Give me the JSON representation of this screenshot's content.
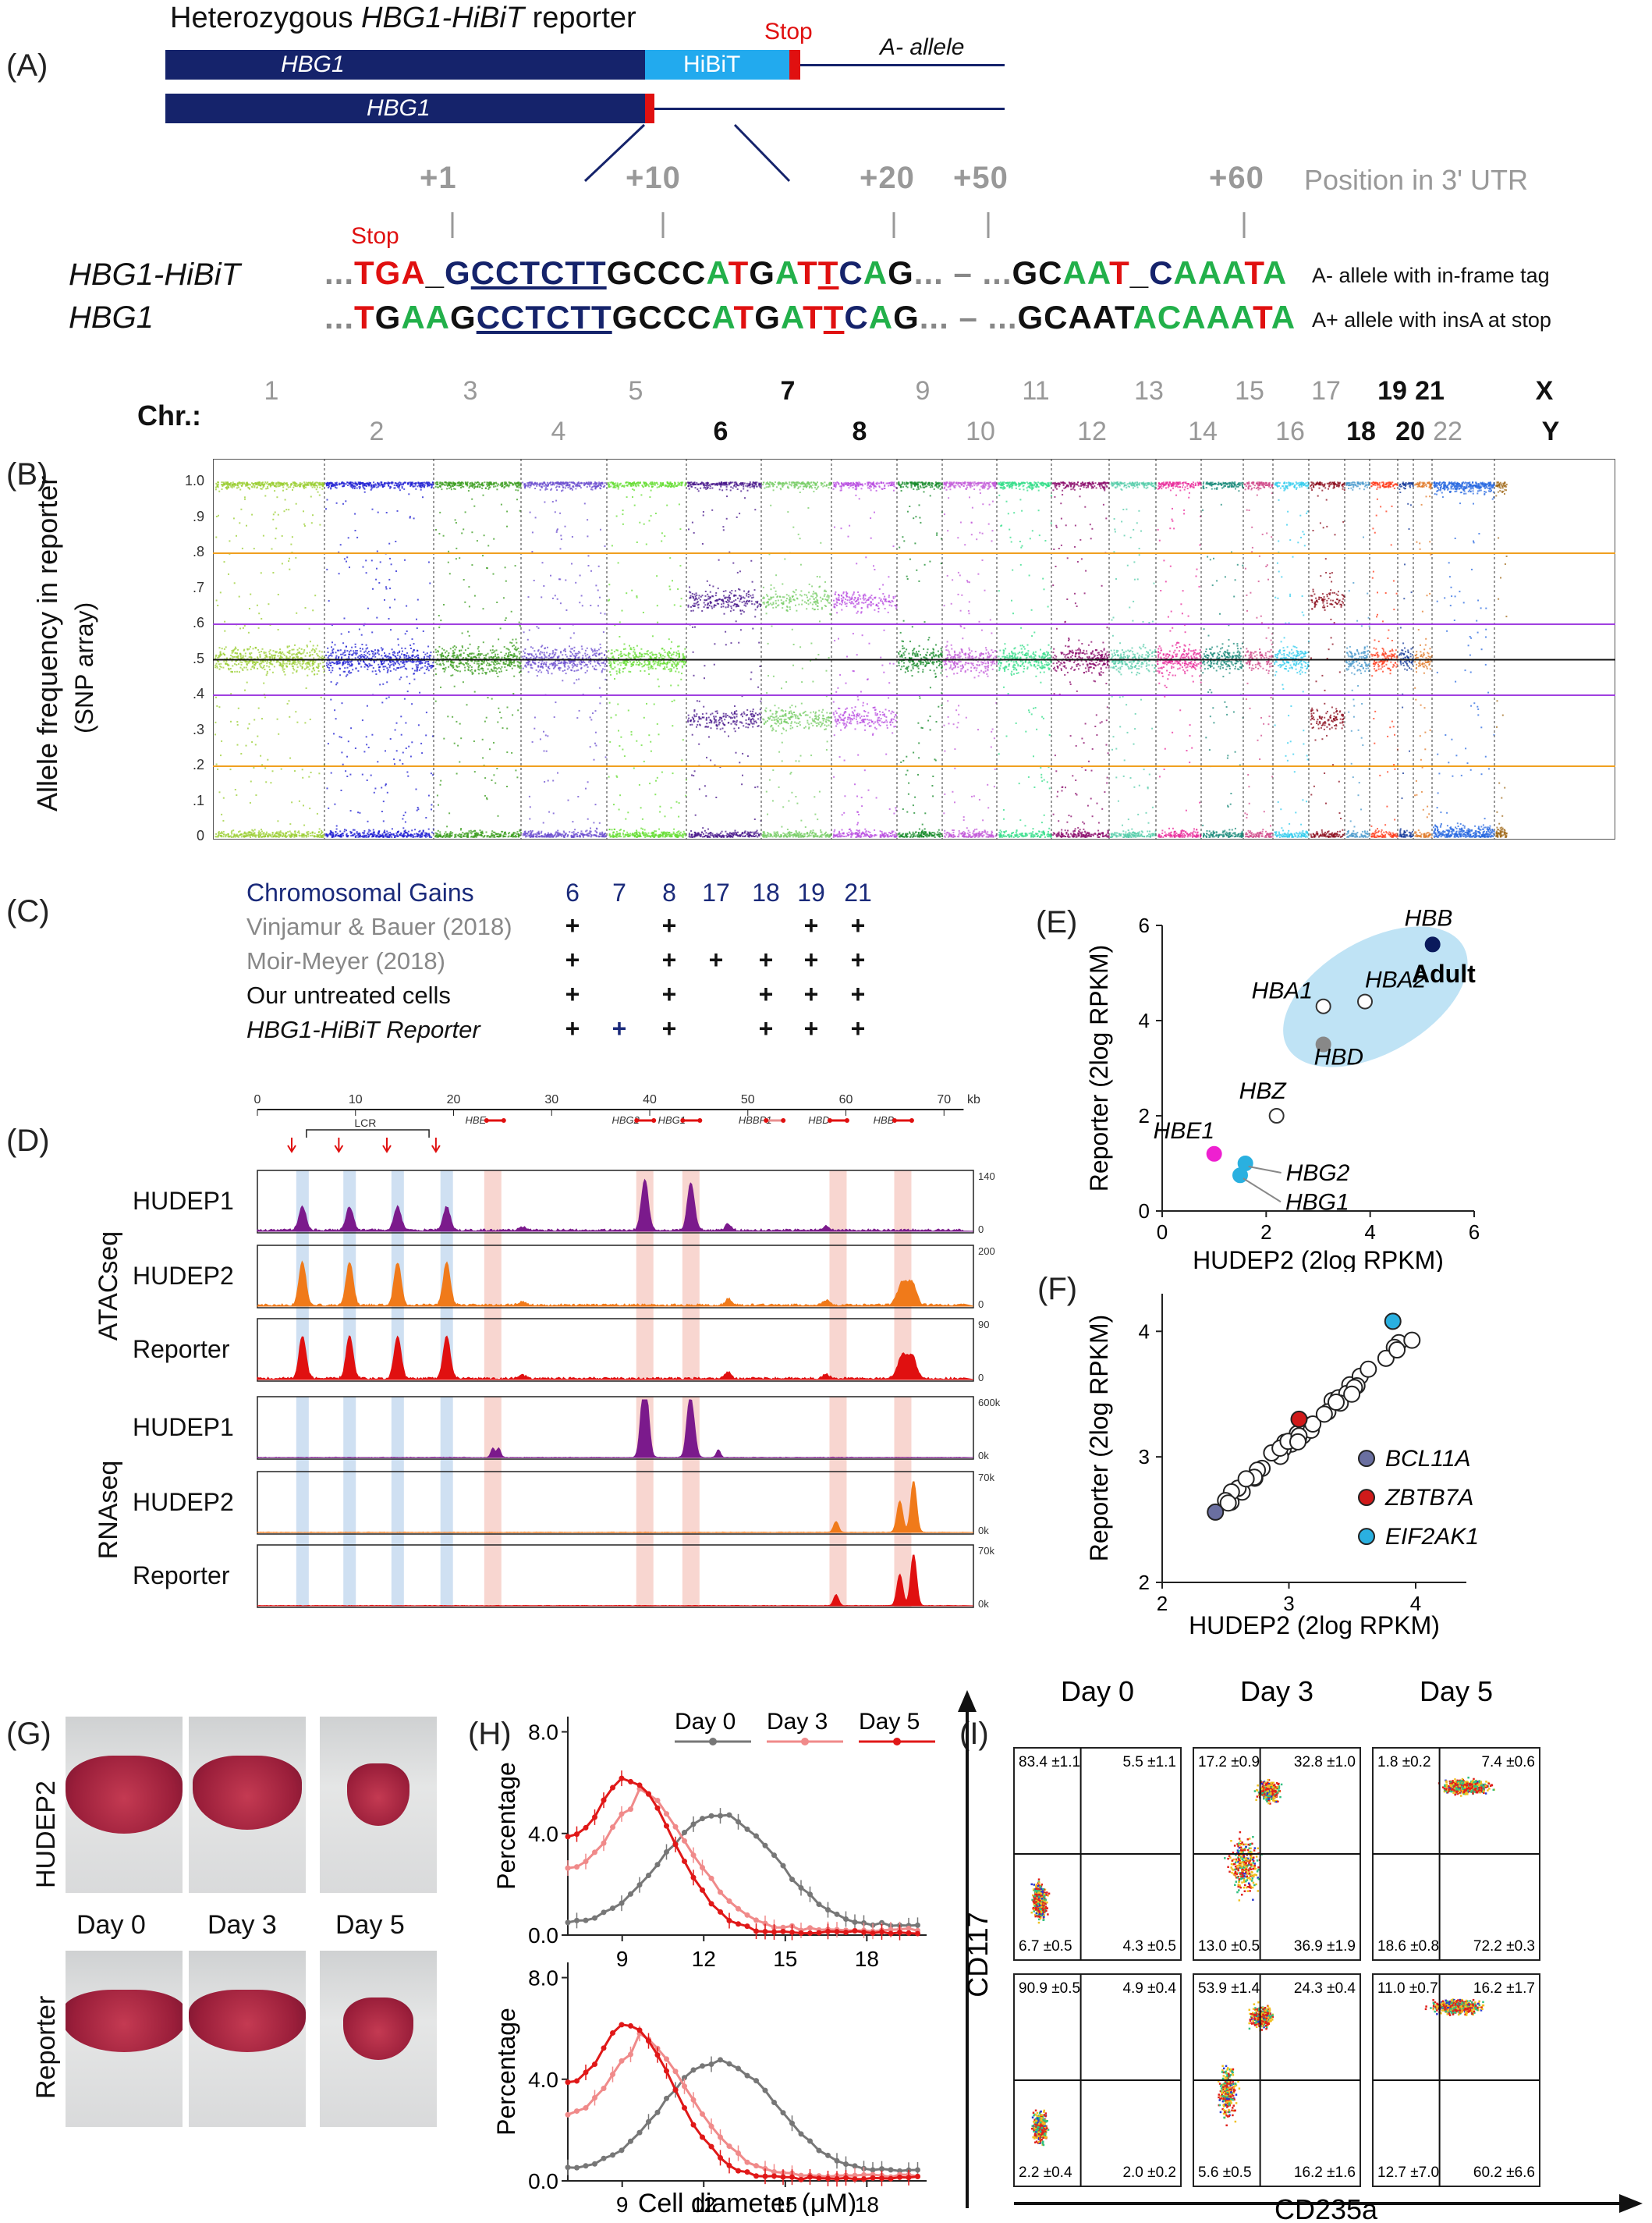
{
  "panelA": {
    "label": "(A)",
    "title_prefix": "Heterozygous ",
    "title_italic": "HBG1-HiBiT",
    "title_suffix": " reporter",
    "gene": "HBG1",
    "tag": "HiBiT",
    "stop": "Stop",
    "allele_top": "A- allele",
    "positions": [
      "+1",
      "+10",
      "+20",
      "+50",
      "+60"
    ],
    "position_caption": "Position in 3' UTR",
    "seq_stop": "Stop",
    "row1_name": "HBG1-HiBiT",
    "row2_name": "HBG1",
    "row1_desc": "A- allele with in-frame tag",
    "row2_desc": "A+ allele with insA at stop",
    "dots": "...",
    "dash": "–"
  },
  "panelB": {
    "label": "(B)",
    "chr_label": "Chr.:",
    "chr_top": [
      "1",
      "3",
      "5",
      "7",
      "9",
      "11",
      "13",
      "15",
      "17",
      "19",
      "21",
      "X"
    ],
    "chr_bottom": [
      "2",
      "4",
      "6",
      "8",
      "10",
      "12",
      "14",
      "16",
      "18",
      "20",
      "22",
      "Y"
    ],
    "bold_chr": [
      "6",
      "7",
      "8",
      "18",
      "19",
      "20",
      "21",
      "X",
      "Y"
    ],
    "ylabel1": "Allele frequency in reporter",
    "ylabel2": "(SNP array)",
    "yticks": [
      "1.0",
      ".9",
      ".8",
      ".7",
      ".6",
      ".5",
      ".4",
      ".3",
      ".2",
      ".1",
      "0"
    ]
  },
  "panelC": {
    "label": "(C)",
    "header": "Chromosomal Gains",
    "cols": [
      "6",
      "7",
      "8",
      "17",
      "18",
      "19",
      "21"
    ],
    "rows": [
      {
        "name": "Vinjamur & Bauer (2018)",
        "color": "#888888",
        "marks": [
          "+",
          "",
          "+",
          "",
          "",
          "+",
          "+"
        ]
      },
      {
        "name": "Moir-Meyer (2018)",
        "color": "#888888",
        "marks": [
          "+",
          "",
          "+",
          "+",
          "+",
          "+",
          "+"
        ]
      },
      {
        "name": "Our untreated cells",
        "color": "#111111",
        "marks": [
          "+",
          "",
          "+",
          "",
          "+",
          "+",
          "+"
        ]
      },
      {
        "name": "HBG1-HiBiT Reporter",
        "color": "#111111",
        "marks": [
          "+",
          "+",
          "+",
          "",
          "+",
          "+",
          "+"
        ]
      }
    ]
  },
  "panelD": {
    "label": "(D)",
    "ruler": [
      "0",
      "10",
      "20",
      "30",
      "40",
      "50",
      "60",
      "70",
      "kb"
    ],
    "genes": [
      "LCR",
      "HBE",
      "HBG2",
      "HBG1",
      "HBBP1",
      "HBD",
      "HBB"
    ],
    "group1": "ATACseq",
    "group2": "RNAseq",
    "tracks": [
      {
        "name": "HUDEP1",
        "scale": "140",
        "color": "#7b1a8c"
      },
      {
        "name": "HUDEP2",
        "scale": "200",
        "color": "#f07a1a"
      },
      {
        "name": "Reporter",
        "scale": "90",
        "color": "#e01010"
      },
      {
        "name": "HUDEP1",
        "scale": "600k",
        "color": "#7b1a8c"
      },
      {
        "name": "HUDEP2",
        "scale": "70k",
        "color": "#f07a1a"
      },
      {
        "name": "Reporter",
        "scale": "70k",
        "color": "#e01010"
      }
    ],
    "zero_labels": [
      "0",
      "0",
      "0",
      "0k",
      "0k",
      "0k"
    ]
  },
  "panelE": {
    "label": "(E)",
    "xlabel": "HUDEP2 (2log RPKM)",
    "ylabel": "Reporter (2log RPKM)",
    "xticks": [
      "0",
      "2",
      "4",
      "6"
    ],
    "yticks": [
      "0",
      "2",
      "4",
      "6"
    ],
    "adult": "Adult",
    "points": [
      {
        "name": "HBB",
        "x": 5.2,
        "y": 5.6,
        "color": "#0a1a5c"
      },
      {
        "name": "HBA2",
        "x": 3.9,
        "y": 4.4,
        "color": "#ffffff"
      },
      {
        "name": "HBA1",
        "x": 3.1,
        "y": 4.3,
        "color": "#ffffff"
      },
      {
        "name": "HBD",
        "x": 3.1,
        "y": 3.5,
        "color": "#888888"
      },
      {
        "name": "HBZ",
        "x": 2.2,
        "y": 2.0,
        "color": "#ffffff"
      },
      {
        "name": "HBE1",
        "x": 1.0,
        "y": 1.2,
        "color": "#ee20d0"
      },
      {
        "name": "HBG2",
        "x": 1.6,
        "y": 1.0,
        "color": "#2ab0e0"
      },
      {
        "name": "HBG1",
        "x": 1.5,
        "y": 0.75,
        "color": "#2ab0e0"
      }
    ]
  },
  "panelF": {
    "label": "(F)",
    "xlabel": "HUDEP2 (2log RPKM)",
    "ylabel": "Reporter (2log RPKM)",
    "xticks": [
      "2",
      "3",
      "4"
    ],
    "yticks": [
      "2",
      "3",
      "4"
    ],
    "legend": [
      {
        "name": "BCL11A",
        "color": "#6a6fa0"
      },
      {
        "name": "ZBTB7A",
        "color": "#d01a1a"
      },
      {
        "name": "EIF2AK1",
        "color": "#2ab0e0"
      }
    ]
  },
  "panelG": {
    "label": "(G)",
    "row1": "HUDEP2",
    "row2": "Reporter",
    "days": [
      "Day 0",
      "Day 3",
      "Day 5"
    ]
  },
  "panelH": {
    "label": "(H)",
    "ylabel": "Percentage",
    "xlabel": "Cell diameter (μM)",
    "xticks": [
      "9",
      "12",
      "15",
      "18"
    ],
    "yticks": [
      "0.0",
      "4.0",
      "8.0"
    ],
    "legend": [
      {
        "name": "Day 0",
        "color": "#777777"
      },
      {
        "name": "Day 3",
        "color": "#f08a8a"
      },
      {
        "name": "Day 5",
        "color": "#e01818"
      }
    ]
  },
  "panelI": {
    "label": "(I)",
    "days": [
      "Day 0",
      "Day 3",
      "Day 5"
    ],
    "yaxis": "CD117",
    "xaxis": "CD235a",
    "quadrants": [
      [
        [
          "83.4 ±1.1",
          "5.5 ±1.1",
          "6.7 ±0.5",
          "4.3 ±0.5"
        ],
        [
          "17.2 ±0.9",
          "32.8 ±1.0",
          "13.0 ±0.5",
          "36.9 ±1.9"
        ],
        [
          "1.8 ±0.2",
          "7.4 ±0.6",
          "18.6 ±0.8",
          "72.2 ±0.3"
        ]
      ],
      [
        [
          "90.9 ±0.5",
          "4.9 ±0.4",
          "2.2 ±0.4",
          "2.0 ±0.2"
        ],
        [
          "53.9 ±1.4",
          "24.3 ±0.4",
          "5.6 ±0.5",
          "16.2 ±1.6"
        ],
        [
          "11.0 ±0.7",
          "16.2 ±1.7",
          "12.7 ±7.0",
          "60.2 ±6.6"
        ]
      ]
    ]
  },
  "colors": {
    "navy": "#15236b",
    "hibit": "#22aaee",
    "stopred": "#e01010"
  }
}
